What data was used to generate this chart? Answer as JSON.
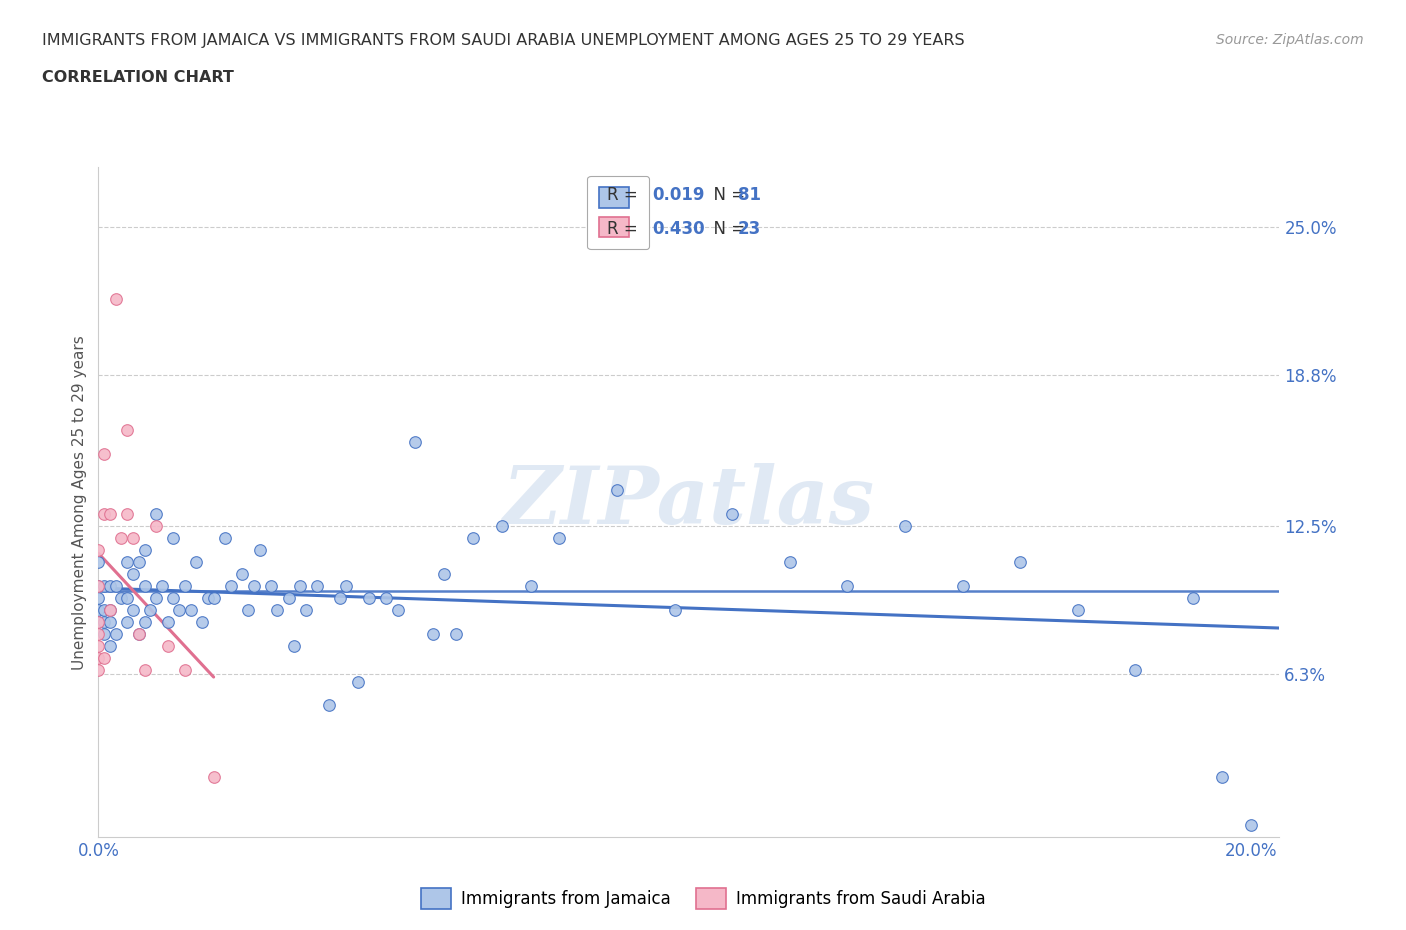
{
  "title_line1": "IMMIGRANTS FROM JAMAICA VS IMMIGRANTS FROM SAUDI ARABIA UNEMPLOYMENT AMONG AGES 25 TO 29 YEARS",
  "title_line2": "CORRELATION CHART",
  "source_text": "Source: ZipAtlas.com",
  "ylabel": "Unemployment Among Ages 25 to 29 years",
  "watermark_text": "ZIPatlas",
  "legend_label1": "Immigrants from Jamaica",
  "legend_label2": "Immigrants from Saudi Arabia",
  "R1": "0.019",
  "N1": "81",
  "R2": "0.430",
  "N2": "23",
  "color_jamaica": "#aec6e8",
  "color_saudi": "#f5b8c8",
  "border_jamaica": "#4472c4",
  "border_saudi": "#e07090",
  "trendline_jamaica_color": "#4472c4",
  "trendline_saudi_color": "#e07090",
  "trendline_saudi_ext_color": "#d0c0c8",
  "xmin": 0.0,
  "xmax": 0.205,
  "ymin": -0.005,
  "ymax": 0.275,
  "ytick_positions": [
    0.0,
    0.063,
    0.125,
    0.188,
    0.25
  ],
  "ytick_labels": [
    "",
    "6.3%",
    "12.5%",
    "18.8%",
    "25.0%"
  ],
  "xtick_positions": [
    0.0,
    0.05,
    0.1,
    0.15,
    0.2
  ],
  "xtick_labels": [
    "0.0%",
    "",
    "",
    "",
    "20.0%"
  ],
  "hline_y": 0.098,
  "jamaica_x": [
    0.0,
    0.0,
    0.0,
    0.0,
    0.0,
    0.001,
    0.001,
    0.001,
    0.001,
    0.002,
    0.002,
    0.002,
    0.002,
    0.003,
    0.003,
    0.004,
    0.005,
    0.005,
    0.005,
    0.006,
    0.006,
    0.007,
    0.007,
    0.008,
    0.008,
    0.008,
    0.009,
    0.01,
    0.01,
    0.011,
    0.012,
    0.013,
    0.013,
    0.014,
    0.015,
    0.016,
    0.017,
    0.018,
    0.019,
    0.02,
    0.022,
    0.023,
    0.025,
    0.026,
    0.027,
    0.028,
    0.03,
    0.031,
    0.033,
    0.034,
    0.035,
    0.036,
    0.038,
    0.04,
    0.042,
    0.043,
    0.045,
    0.047,
    0.05,
    0.052,
    0.055,
    0.058,
    0.06,
    0.062,
    0.065,
    0.07,
    0.075,
    0.08,
    0.09,
    0.1,
    0.11,
    0.12,
    0.13,
    0.14,
    0.15,
    0.16,
    0.17,
    0.18,
    0.19,
    0.195,
    0.2
  ],
  "jamaica_y": [
    0.085,
    0.09,
    0.095,
    0.1,
    0.11,
    0.08,
    0.085,
    0.09,
    0.1,
    0.075,
    0.085,
    0.09,
    0.1,
    0.08,
    0.1,
    0.095,
    0.085,
    0.095,
    0.11,
    0.09,
    0.105,
    0.08,
    0.11,
    0.085,
    0.1,
    0.115,
    0.09,
    0.095,
    0.13,
    0.1,
    0.085,
    0.095,
    0.12,
    0.09,
    0.1,
    0.09,
    0.11,
    0.085,
    0.095,
    0.095,
    0.12,
    0.1,
    0.105,
    0.09,
    0.1,
    0.115,
    0.1,
    0.09,
    0.095,
    0.075,
    0.1,
    0.09,
    0.1,
    0.05,
    0.095,
    0.1,
    0.06,
    0.095,
    0.095,
    0.09,
    0.16,
    0.08,
    0.105,
    0.08,
    0.12,
    0.125,
    0.1,
    0.12,
    0.14,
    0.09,
    0.13,
    0.11,
    0.1,
    0.125,
    0.1,
    0.11,
    0.09,
    0.065,
    0.095,
    0.02,
    0.0
  ],
  "saudi_x": [
    0.0,
    0.0,
    0.0,
    0.0,
    0.0,
    0.0,
    0.0,
    0.001,
    0.001,
    0.001,
    0.002,
    0.002,
    0.003,
    0.004,
    0.005,
    0.005,
    0.006,
    0.007,
    0.008,
    0.01,
    0.012,
    0.015,
    0.02
  ],
  "saudi_y": [
    0.065,
    0.07,
    0.075,
    0.08,
    0.085,
    0.1,
    0.115,
    0.07,
    0.13,
    0.155,
    0.09,
    0.13,
    0.22,
    0.12,
    0.13,
    0.165,
    0.12,
    0.08,
    0.065,
    0.125,
    0.075,
    0.065,
    0.02
  ],
  "grid_color": "#cccccc",
  "spine_color": "#cccccc",
  "tick_color": "#4472c4"
}
